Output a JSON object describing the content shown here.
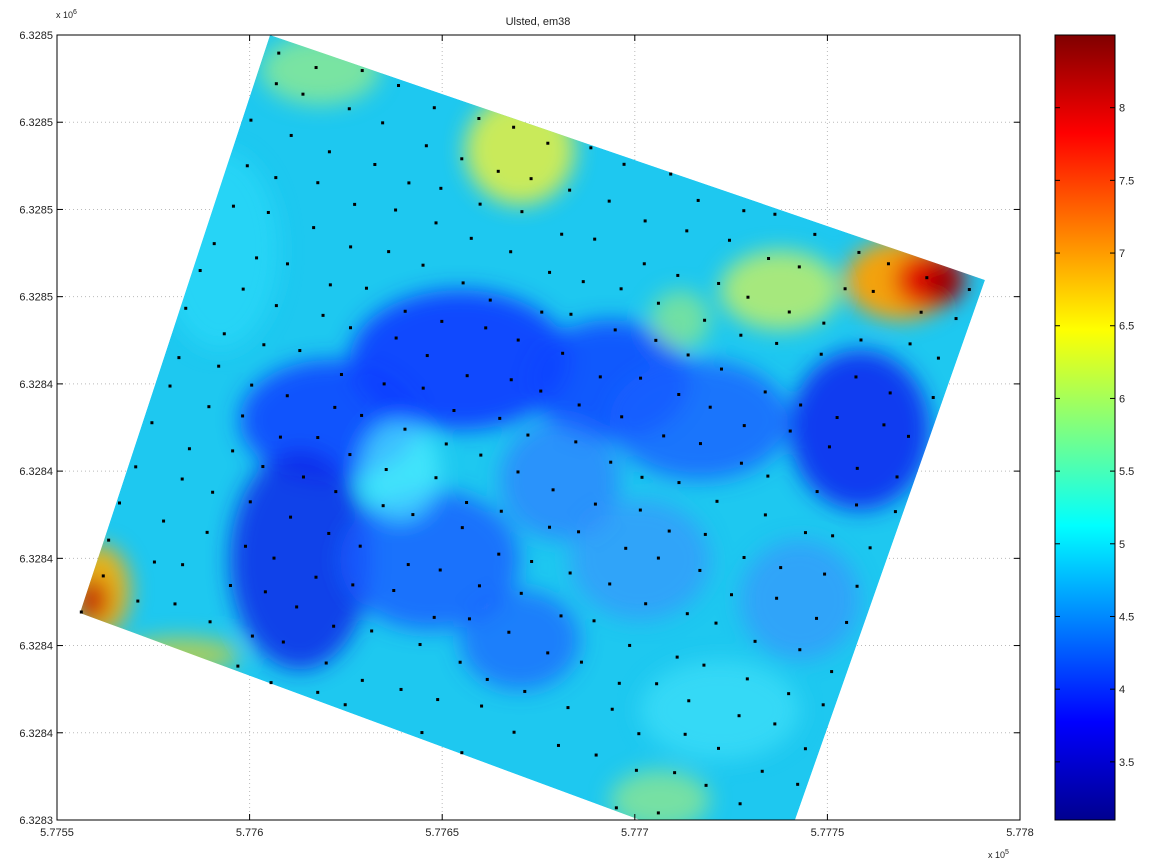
{
  "chart_data": {
    "type": "heatmap",
    "title": "Ulsted, em38",
    "xlabel": "",
    "ylabel": "",
    "x_exponent_label": "x 10",
    "x_exponent": "5",
    "y_exponent_label": "x 10",
    "y_exponent": "6",
    "xlim": [
      5.7755,
      5.778
    ],
    "ylim": [
      6.3283,
      6.3285
    ],
    "grid": true,
    "x_ticks": [
      "5.7755",
      "5.776",
      "5.7765",
      "5.777",
      "5.7775",
      "5.778"
    ],
    "y_ticks": [
      "6.3285",
      "6.3285",
      "6.3285",
      "6.3285",
      "6.3284",
      "6.3284",
      "6.3284",
      "6.3284",
      "6.3284",
      "6.3283"
    ],
    "colorbar": {
      "colormap": "jet",
      "range": [
        3.1,
        8.5
      ],
      "ticks": [
        "8",
        "7.5",
        "7",
        "6.5",
        "6",
        "5.5",
        "5",
        "4.5",
        "4",
        "3.5"
      ],
      "tick_values": [
        8,
        7.5,
        7,
        6.5,
        6,
        5.5,
        5,
        4.5,
        4,
        3.5
      ]
    },
    "colors": {
      "grid": "#bbbbbb",
      "axes": "#000000",
      "points": "#000000"
    }
  }
}
